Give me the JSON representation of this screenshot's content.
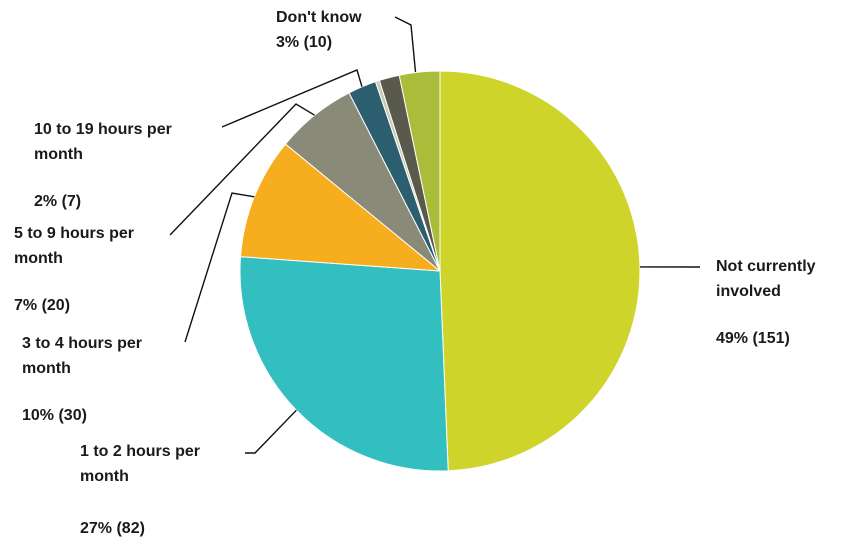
{
  "chart_data": {
    "type": "pie",
    "title": "",
    "start_angle_deg": 0,
    "direction": "clockwise",
    "slices": [
      {
        "label": "Not currently involved",
        "percent_label": "49% (151)",
        "count": 151,
        "color": "#cfd42a"
      },
      {
        "label": "1 to 2 hours per month",
        "percent_label": "27% (82)",
        "count": 82,
        "color": "#33bec0"
      },
      {
        "label": "3 to 4 hours per month",
        "percent_label": "10% (30)",
        "count": 30,
        "color": "#f6ae1f"
      },
      {
        "label": "5 to 9 hours per month",
        "percent_label": "7% (20)",
        "count": 20,
        "color": "#8a8a78"
      },
      {
        "label": "10 to 19 hours per month",
        "percent_label": "2% (7)",
        "count": 7,
        "color": "#2b5f6f"
      },
      {
        "label": "",
        "percent_label": "",
        "count": 1,
        "color": "#c9cbb6"
      },
      {
        "label": "",
        "percent_label": "",
        "count": 5,
        "color": "#5a5a4c"
      },
      {
        "label": "Don't know",
        "percent_label": "3% (10)",
        "count": 10,
        "color": "#a9bd3a"
      }
    ]
  }
}
